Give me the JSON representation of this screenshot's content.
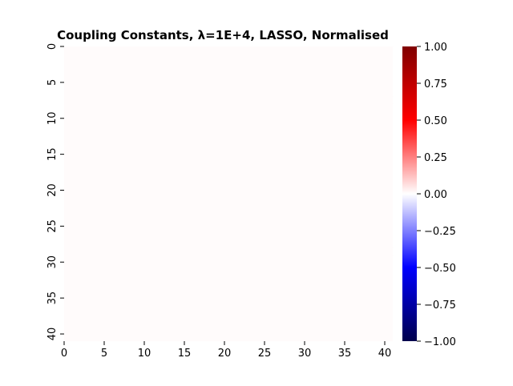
{
  "chart_data": {
    "type": "heatmap",
    "title": "Coupling Constants, λ=1E+4, LASSO, Normalised",
    "xlabel": "",
    "ylabel": "",
    "n_rows": 41,
    "n_cols": 41,
    "uniform_value": 0.0,
    "x_ticks": [
      "0",
      "5",
      "10",
      "15",
      "20",
      "25",
      "30",
      "35",
      "40"
    ],
    "y_ticks": [
      "0",
      "5",
      "10",
      "15",
      "20",
      "25",
      "30",
      "35",
      "40"
    ],
    "colorbar": {
      "min": -1.0,
      "max": 1.0,
      "ticks": [
        "1.00",
        "0.75",
        "0.50",
        "0.25",
        "0.00",
        "−0.25",
        "−0.50",
        "−0.75",
        "−1.00"
      ],
      "colormap": "seismic"
    },
    "cell_color": "#fffbfb"
  }
}
